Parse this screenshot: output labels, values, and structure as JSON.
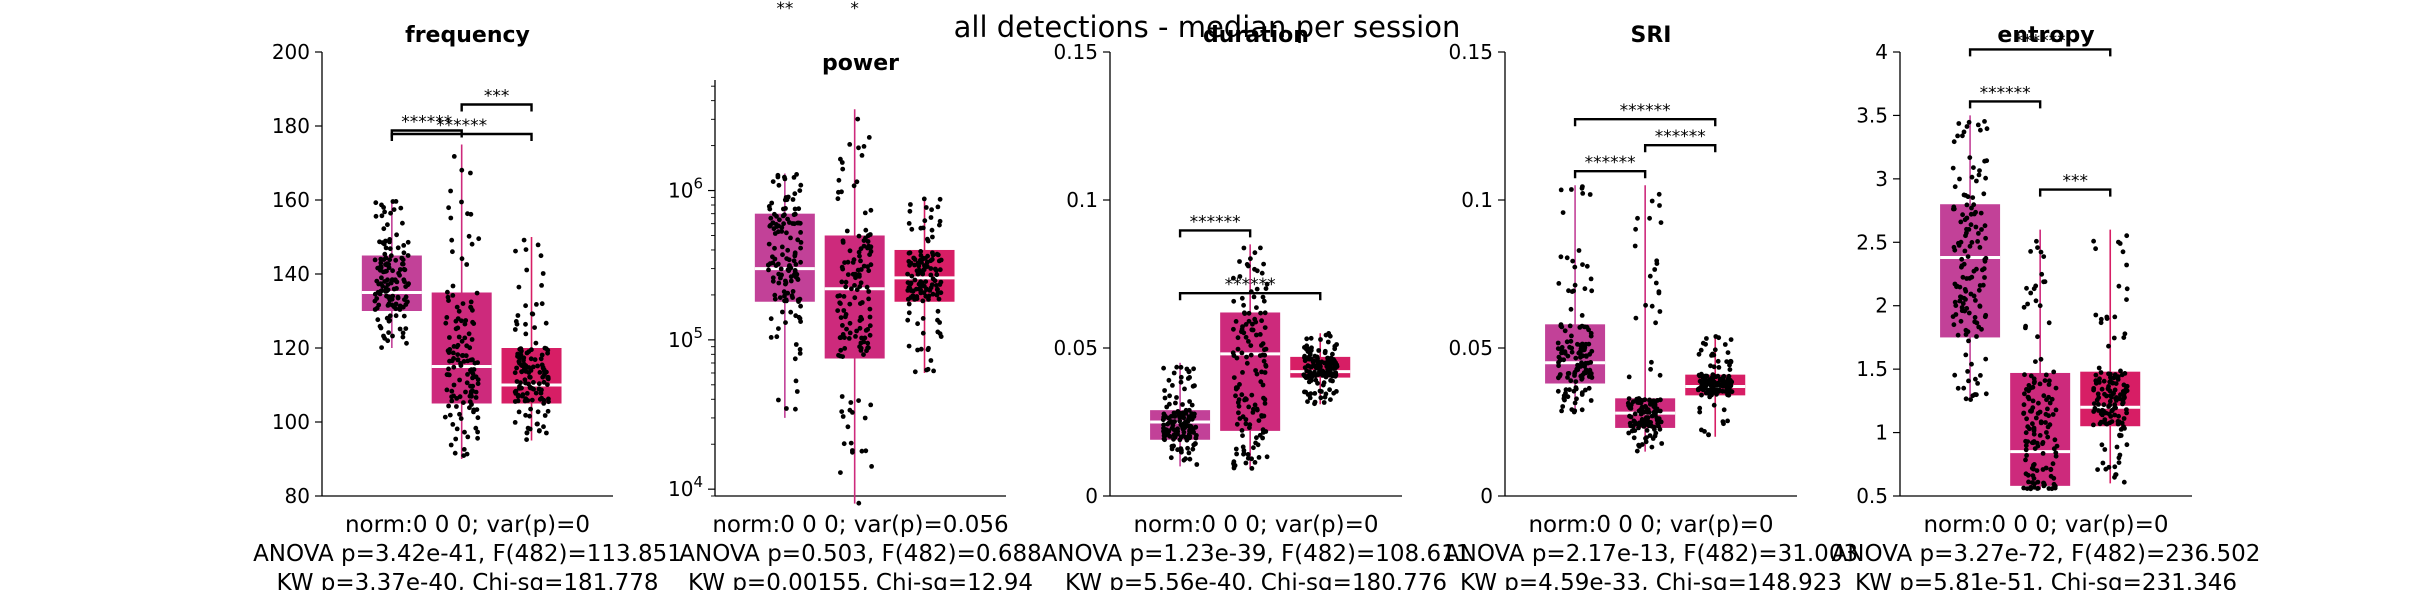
{
  "figure_title": "all detections - median per session",
  "colors": {
    "g0": "#c24198",
    "g1": "#cd2a7c",
    "g2": "#d71e65",
    "median": "#ffffff",
    "bracket": "#000000"
  },
  "chart_data": [
    {
      "type": "box",
      "title": "frequency",
      "scale": "linear",
      "ylim": [
        80,
        200
      ],
      "yticks": [
        80,
        100,
        120,
        140,
        160,
        180,
        200
      ],
      "yticklabels": [
        "80",
        "100",
        "120",
        "140",
        "160",
        "180",
        "200"
      ],
      "boxes": [
        {
          "q1": 130,
          "median": 135,
          "q3": 145,
          "whisker_low": 120,
          "whisker_high": 160
        },
        {
          "q1": 105,
          "median": 115,
          "q3": 135,
          "whisker_low": 90,
          "whisker_high": 175
        },
        {
          "q1": 105,
          "median": 110,
          "q3": 120,
          "whisker_low": 95,
          "whisker_high": 150
        }
      ],
      "significance": [
        {
          "between": [
            0,
            1
          ],
          "label": "******"
        },
        {
          "between": [
            1,
            2
          ],
          "label": "***"
        },
        {
          "between": [
            0,
            2
          ],
          "label": "******"
        }
      ],
      "xlabel": [
        "norm:0  0  0; var(p)=0",
        "ANOVA p=3.42e-41, F(482)=113.851",
        "KW p=3.37e-40, Chi-sq=181.778"
      ]
    },
    {
      "type": "box",
      "title": "power",
      "scale": "log",
      "ylim": [
        9000,
        5500000
      ],
      "yticks": [
        10000,
        100000,
        1000000
      ],
      "yticklabels": [
        "10^4",
        "10^5",
        "10^6"
      ],
      "boxes": [
        {
          "q1": 180000,
          "median": 300000,
          "q3": 700000,
          "whisker_low": 30000,
          "whisker_high": 1300000
        },
        {
          "q1": 75000,
          "median": 220000,
          "q3": 500000,
          "whisker_low": 8000,
          "whisker_high": 3500000
        },
        {
          "q1": 180000,
          "median": 260000,
          "q3": 400000,
          "whisker_low": 60000,
          "whisker_high": 900000
        }
      ],
      "significance": [],
      "stars_above": [
        {
          "group": 0,
          "label": "**"
        },
        {
          "group": 1,
          "label": "*"
        }
      ],
      "xlabel": [
        "norm:0  0  0; var(p)=0.056",
        "ANOVA p=0.503, F(482)=0.688",
        "KW p=0.00155, Chi-sq=12.94"
      ]
    },
    {
      "type": "box",
      "title": "duration",
      "scale": "linear",
      "ylim": [
        0,
        0.15
      ],
      "yticks": [
        0,
        0.05,
        0.1,
        0.15
      ],
      "yticklabels": [
        "0",
        "0.05",
        "0.1",
        "0.15"
      ],
      "boxes": [
        {
          "q1": 0.019,
          "median": 0.025,
          "q3": 0.029,
          "whisker_low": 0.01,
          "whisker_high": 0.045
        },
        {
          "q1": 0.022,
          "median": 0.048,
          "q3": 0.062,
          "whisker_low": 0.009,
          "whisker_high": 0.085
        },
        {
          "q1": 0.04,
          "median": 0.042,
          "q3": 0.047,
          "whisker_low": 0.031,
          "whisker_high": 0.055
        }
      ],
      "significance": [
        {
          "between": [
            0,
            1
          ],
          "label": "******"
        },
        {
          "between": [
            0,
            2
          ],
          "label": "******"
        }
      ],
      "xlabel": [
        "norm:0  0  0; var(p)=0",
        "ANOVA p=1.23e-39, F(482)=108.611",
        "KW p=5.56e-40, Chi-sq=180.776"
      ]
    },
    {
      "type": "box",
      "title": "SRI",
      "scale": "linear",
      "ylim": [
        0,
        0.15
      ],
      "yticks": [
        0,
        0.05,
        0.1,
        0.15
      ],
      "yticklabels": [
        "0",
        "0.05",
        "0.1",
        "0.15"
      ],
      "boxes": [
        {
          "q1": 0.038,
          "median": 0.045,
          "q3": 0.058,
          "whisker_low": 0.028,
          "whisker_high": 0.105
        },
        {
          "q1": 0.023,
          "median": 0.028,
          "q3": 0.033,
          "whisker_low": 0.015,
          "whisker_high": 0.105
        },
        {
          "q1": 0.034,
          "median": 0.037,
          "q3": 0.041,
          "whisker_low": 0.02,
          "whisker_high": 0.054
        }
      ],
      "significance": [
        {
          "between": [
            0,
            1
          ],
          "label": "******"
        },
        {
          "between": [
            1,
            2
          ],
          "label": "******"
        },
        {
          "between": [
            0,
            2
          ],
          "label": "******"
        }
      ],
      "xlabel": [
        "norm:0  0  0; var(p)=0",
        "ANOVA p=2.17e-13, F(482)=31.003",
        "KW p=4.59e-33, Chi-sq=148.923"
      ]
    },
    {
      "type": "box",
      "title": "entropy",
      "scale": "linear",
      "ylim": [
        0.5,
        4
      ],
      "yticks": [
        0.5,
        1,
        1.5,
        2,
        2.5,
        3,
        3.5,
        4
      ],
      "yticklabels": [
        "0.5",
        "1",
        "1.5",
        "2",
        "2.5",
        "3",
        "3.5",
        "4"
      ],
      "boxes": [
        {
          "q1": 1.75,
          "median": 2.38,
          "q3": 2.8,
          "whisker_low": 1.25,
          "whisker_high": 3.5
        },
        {
          "q1": 0.58,
          "median": 0.85,
          "q3": 1.47,
          "whisker_low": 0.55,
          "whisker_high": 2.6
        },
        {
          "q1": 1.05,
          "median": 1.2,
          "q3": 1.48,
          "whisker_low": 0.6,
          "whisker_high": 2.6
        }
      ],
      "significance": [
        {
          "between": [
            0,
            1
          ],
          "label": "******"
        },
        {
          "between": [
            1,
            2
          ],
          "label": "***"
        },
        {
          "between": [
            0,
            2
          ],
          "label": "******"
        }
      ],
      "xlabel": [
        "norm:0  0  0; var(p)=0",
        "ANOVA p=3.27e-72, F(482)=236.502",
        "KW p=5.81e-51, Chi-sq=231.346"
      ]
    }
  ]
}
